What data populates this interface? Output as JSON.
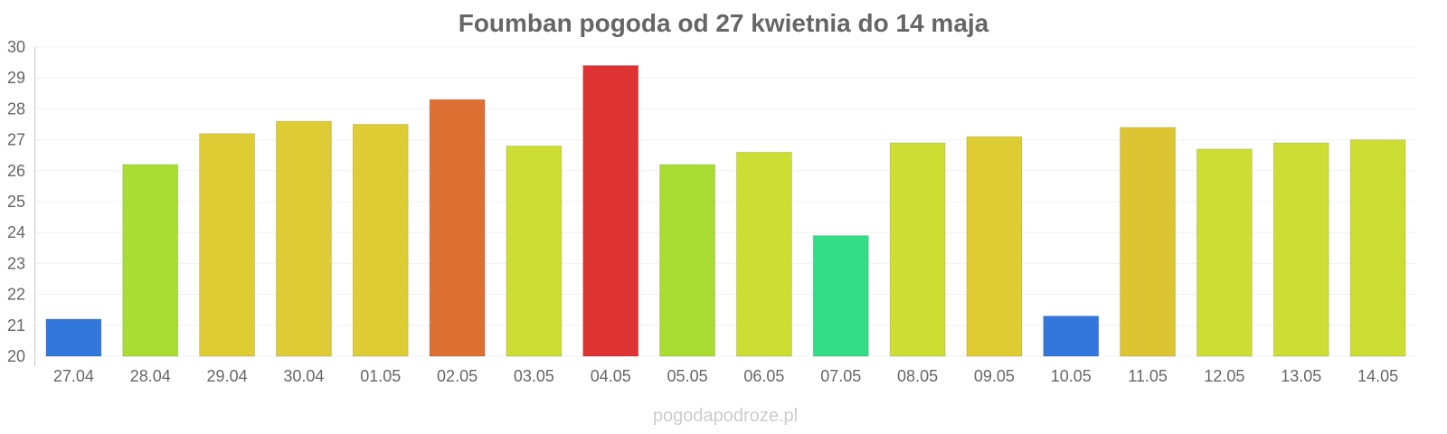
{
  "chart_data": {
    "type": "bar",
    "title": "Foumban pogoda od 27 kwietnia do 14 maja",
    "xlabel": "",
    "ylabel": "",
    "ylim": [
      20,
      30
    ],
    "yticks": [
      "20",
      "21",
      "22",
      "23",
      "24",
      "25",
      "26",
      "27",
      "28",
      "29",
      "30"
    ],
    "categories": [
      "27.04",
      "28.04",
      "29.04",
      "30.04",
      "01.05",
      "02.05",
      "03.05",
      "04.05",
      "05.05",
      "06.05",
      "07.05",
      "08.05",
      "09.05",
      "10.05",
      "11.05",
      "12.05",
      "13.05",
      "14.05"
    ],
    "values": [
      21.2,
      26.2,
      27.2,
      27.6,
      27.5,
      28.3,
      26.8,
      29.4,
      26.2,
      26.6,
      23.9,
      26.9,
      27.1,
      21.3,
      27.4,
      26.7,
      26.9,
      27.0
    ],
    "colors": [
      "#3377dd",
      "#aadd33",
      "#ddcc33",
      "#ddcc33",
      "#ddcc33",
      "#dd7033",
      "#ccdd33",
      "#dd3333",
      "#aadd33",
      "#ccdd33",
      "#33dd88",
      "#ccdd33",
      "#ddcc33",
      "#3377dd",
      "#ddc433",
      "#ccdd33",
      "#ccdd33",
      "#ccdd33"
    ],
    "grid": true,
    "legend": "none"
  },
  "watermark": "pogodapodroze.pl"
}
